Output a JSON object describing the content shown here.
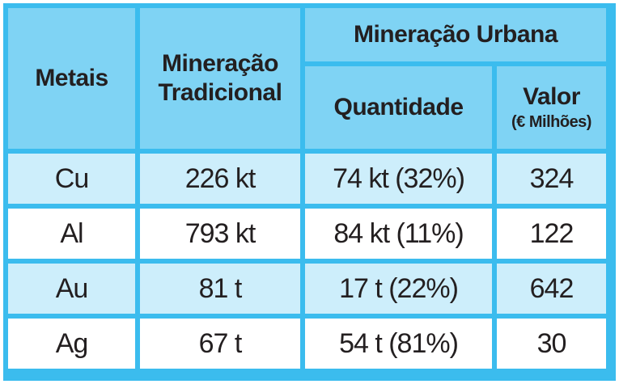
{
  "table": {
    "headers": {
      "metals": "Metais",
      "traditional_line1": "Mineração",
      "traditional_line2": "Tradicional",
      "urban": "Mineração Urbana",
      "quantity": "Quantidade",
      "value": "Valor",
      "value_unit": "(€ Milhões)"
    },
    "rows": [
      {
        "metal": "Cu",
        "traditional": "226 kt",
        "quantity": "74 kt (32%)",
        "value": "324"
      },
      {
        "metal": "Al",
        "traditional": "793 kt",
        "quantity": "84 kt (11%)",
        "value": "122"
      },
      {
        "metal": "Au",
        "traditional": "81 t",
        "quantity": "17 t (22%)",
        "value": "642"
      },
      {
        "metal": "Ag",
        "traditional": "67 t",
        "quantity": "54 t (81%)",
        "value": "30"
      }
    ]
  },
  "colors": {
    "border": "#3bbcee",
    "header_bg": "#7fd3f4",
    "row_alt_bg": "#cdeefb",
    "row_bg": "#ffffff",
    "text": "#231f20"
  }
}
